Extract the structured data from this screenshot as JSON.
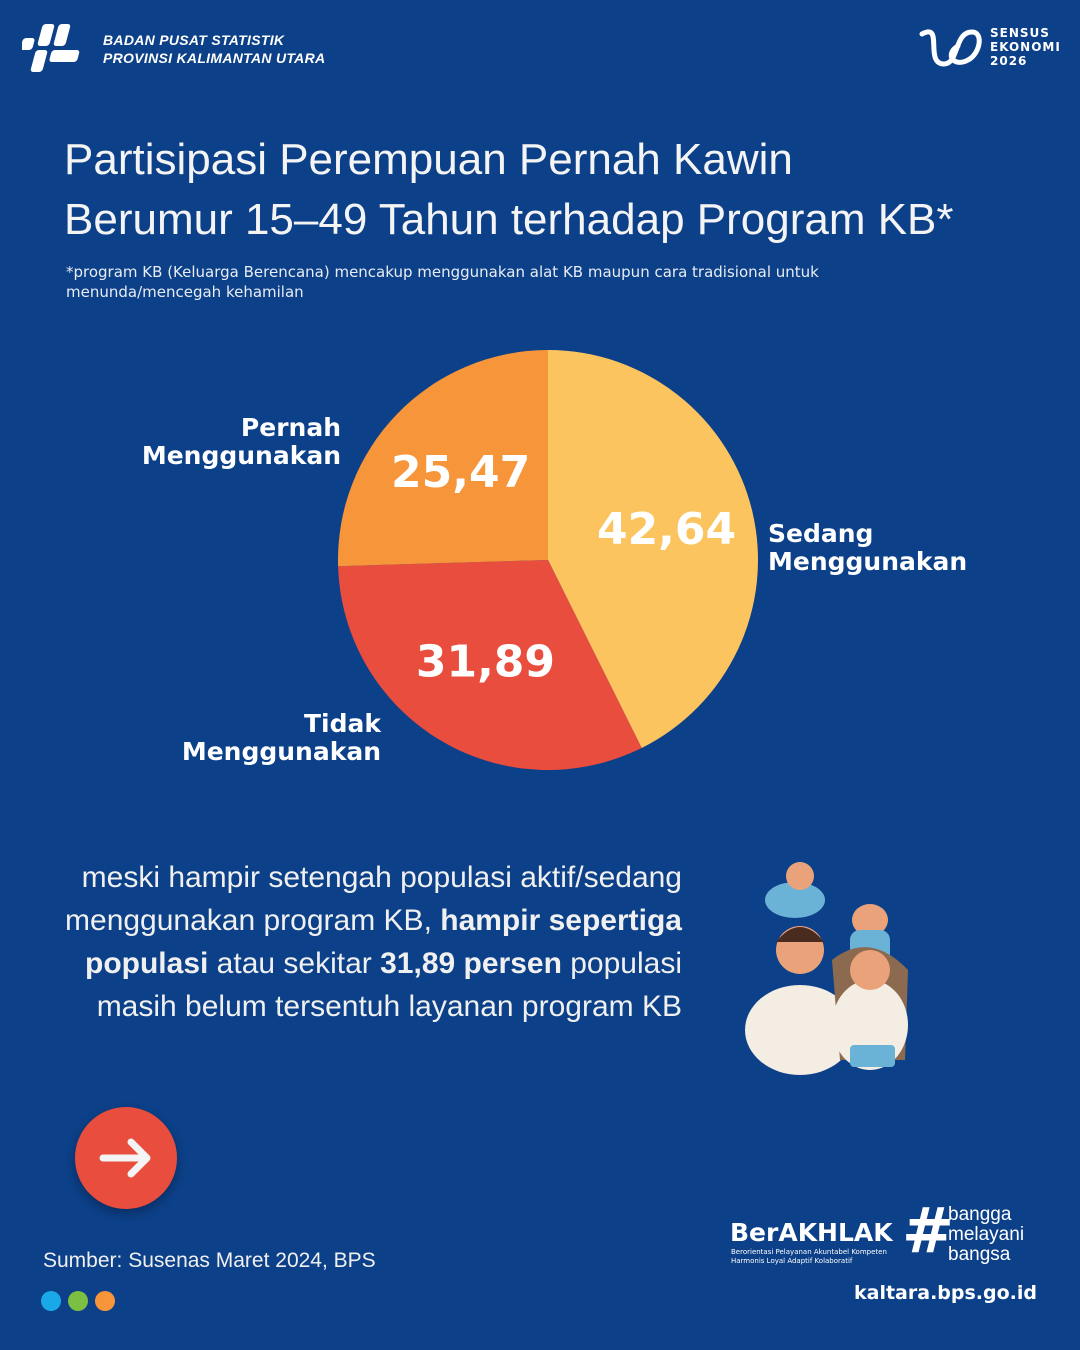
{
  "header": {
    "org_line1": "BADAN PUSAT STATISTIK",
    "org_line2": "PROVINSI KALIMANTAN UTARA",
    "event": [
      "SENSUS",
      "EKONOMI",
      "2026"
    ]
  },
  "chart_data": {
    "type": "pie",
    "title": [
      "Partisipasi Perempuan Pernah Kawin",
      "Berumur 15–49 Tahun terhadap Program KB*"
    ],
    "subtitle": "*program KB (Keluarga Berencana) mencakup menggunakan alat KB maupun cara tradisional untuk menunda/mencegah kehamilan",
    "categories": [
      "Sedang Menggunakan",
      "Tidak Menggunakan",
      "Pernah Menggunakan"
    ],
    "values": [
      42.64,
      31.89,
      25.47
    ],
    "value_labels": [
      "42,64",
      "31,89",
      "25,47"
    ],
    "colors": [
      "#fcc45e",
      "#e84d3e",
      "#f7953b"
    ]
  },
  "body_text": [
    {
      "text": "meski hampir setengah populasi aktif/sedang menggunakan program KB, ",
      "bold": false
    },
    {
      "text": "hampir sepertiga populasi",
      "bold": true
    },
    {
      "text": " atau sekitar ",
      "bold": false
    },
    {
      "text": "31,89 persen",
      "bold": true
    },
    {
      "text": " populasi masih belum tersentuh layanan program KB",
      "bold": false
    }
  ],
  "footer": {
    "source": "Sumber: Susenas Maret 2024, BPS",
    "brand": "BerAKHLAK",
    "brand_tagline": [
      "Berorientasi Pelayanan Akuntabel Kompeten",
      "Harmonis Loyal Adaptif Kolaboratif"
    ],
    "hashtag": [
      "bangga",
      "melayani",
      "bangsa"
    ],
    "website": "kaltara.bps.go.id"
  }
}
